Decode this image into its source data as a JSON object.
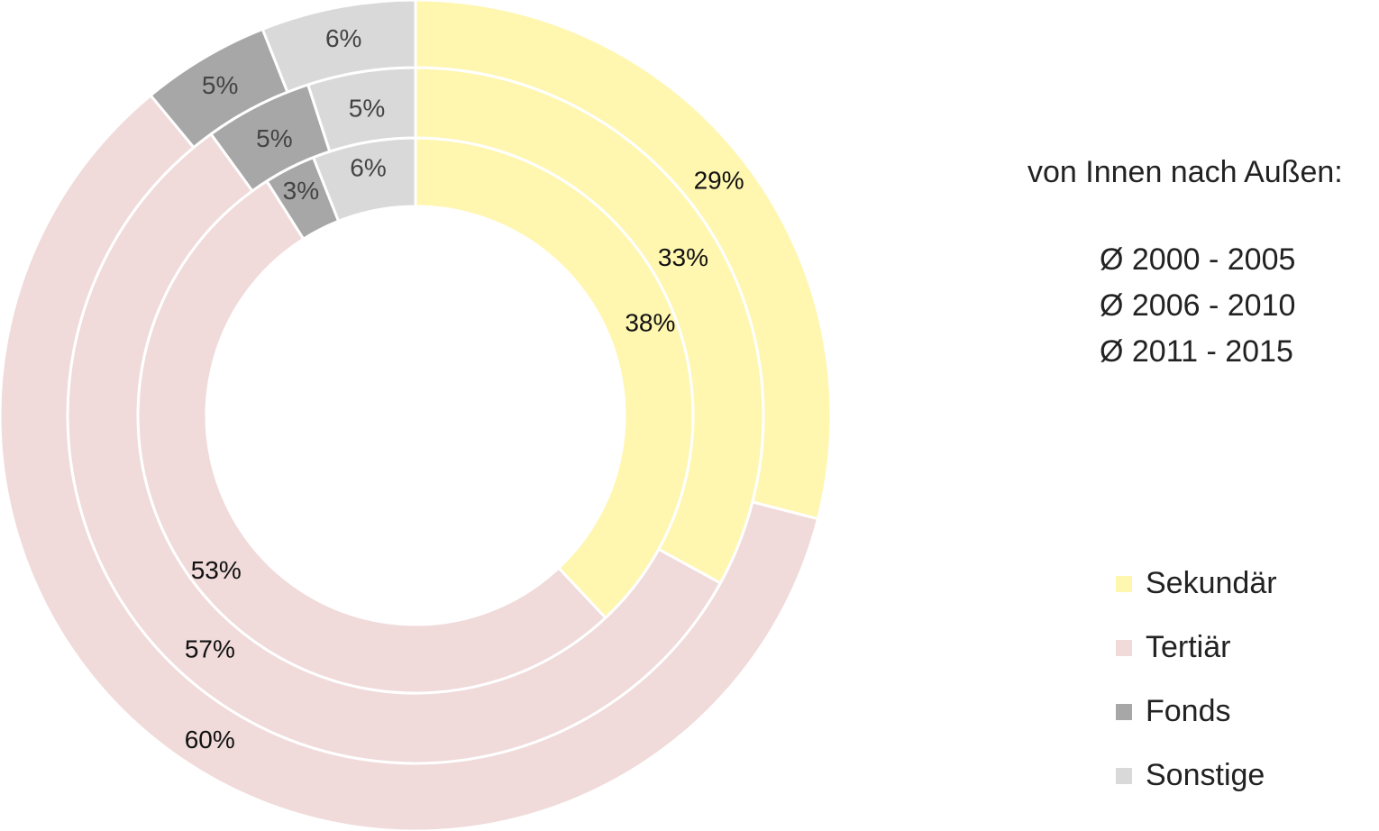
{
  "chart_data": {
    "type": "donut",
    "title": "",
    "categories": [
      "Sekundär",
      "Tertiär",
      "Fonds",
      "Sonstige"
    ],
    "colors": {
      "Sekundär": "#fff6b0",
      "Tertiär": "#f0dada",
      "Fonds": "#a7a7a7",
      "Sonstige": "#d9d9d9"
    },
    "series": [
      {
        "name": "Ø 2000 - 2005",
        "values": [
          38,
          53,
          3,
          6
        ],
        "labels": [
          "38%",
          "53%",
          "3%",
          "6%"
        ]
      },
      {
        "name": "Ø 2006 - 2010",
        "values": [
          33,
          57,
          5,
          5
        ],
        "labels": [
          "33%",
          "57%",
          "5%",
          "5%"
        ]
      },
      {
        "name": "Ø 2011 - 2015",
        "values": [
          29,
          60,
          5,
          6
        ],
        "labels": [
          "29%",
          "60%",
          "5%",
          "6%"
        ]
      }
    ],
    "start_angle": "12 o'clock",
    "direction": "clockwise",
    "legend_position": "right"
  },
  "annotation": {
    "heading": "von Innen nach Außen:",
    "periods": [
      "Ø 2000 - 2005",
      "Ø 2006 - 2010",
      "Ø 2011 - 2015"
    ]
  },
  "legend": {
    "items": [
      {
        "label": "Sekundär",
        "color": "#fff6b0"
      },
      {
        "label": "Tertiär",
        "color": "#f0dada"
      },
      {
        "label": "Fonds",
        "color": "#a7a7a7"
      },
      {
        "label": "Sonstige",
        "color": "#d9d9d9"
      }
    ]
  }
}
